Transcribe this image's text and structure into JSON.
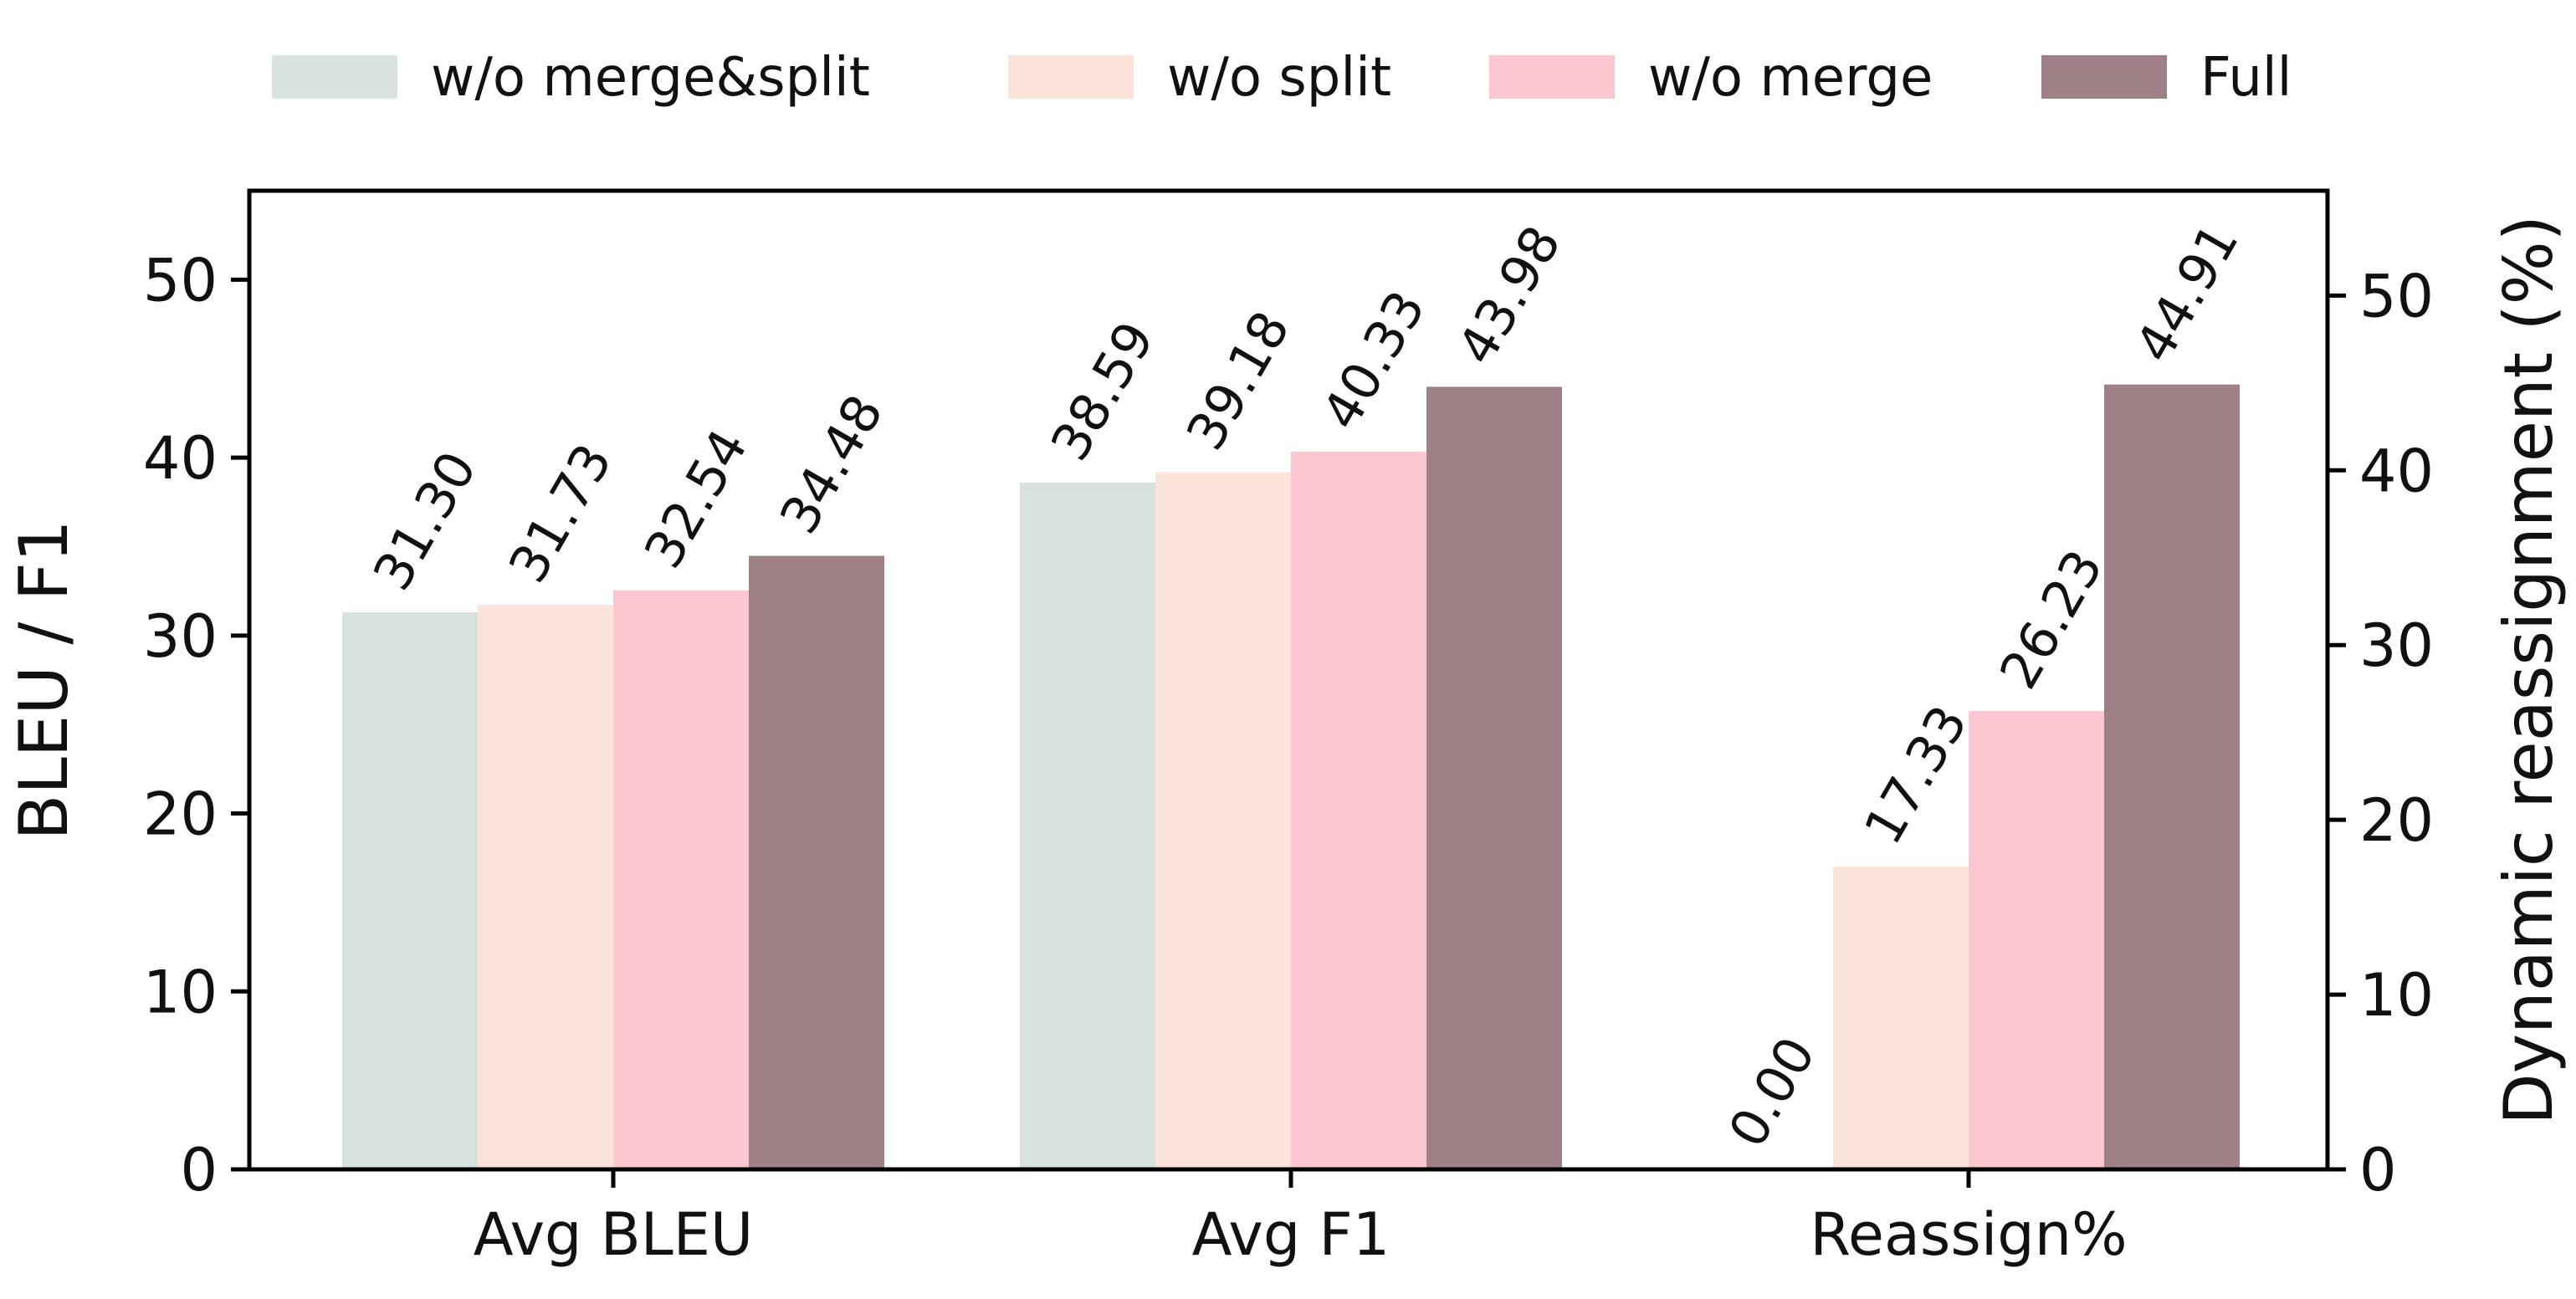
{
  "chart_data": {
    "type": "bar",
    "categories": [
      "Avg BLEU",
      "Avg F1",
      "Reassign%"
    ],
    "series": [
      {
        "name": "w/o merge&split",
        "color": "#d7e2dc",
        "values": [
          31.3,
          38.59,
          0.0
        ]
      },
      {
        "name": "w/o split",
        "color": "#fde4da",
        "values": [
          31.73,
          39.18,
          17.33
        ]
      },
      {
        "name": "w/o merge",
        "color": "#fdc7d2",
        "values": [
          32.54,
          40.33,
          26.23
        ]
      },
      {
        "name": "Full",
        "color": "#9d8186",
        "values": [
          34.48,
          43.98,
          44.91
        ]
      }
    ],
    "data_labels": [
      [
        "31.30",
        "38.59",
        "0.00"
      ],
      [
        "31.73",
        "39.18",
        "17.33"
      ],
      [
        "32.54",
        "40.33",
        "26.23"
      ],
      [
        "34.48",
        "43.98",
        "44.91"
      ]
    ],
    "ylabel_left": "BLEU / F1",
    "ylabel_right": "Dynamic reassignment (%)",
    "ylim_left": [
      0,
      55
    ],
    "ylim_right": [
      0,
      56
    ],
    "yticks_left": [
      "0",
      "10",
      "20",
      "30",
      "40",
      "50"
    ],
    "yticks_right": [
      "0",
      "10",
      "20",
      "30",
      "40",
      "50"
    ],
    "right_axis_categories": [
      "Reassign%"
    ],
    "legend_position": "top-center",
    "grid": false
  }
}
